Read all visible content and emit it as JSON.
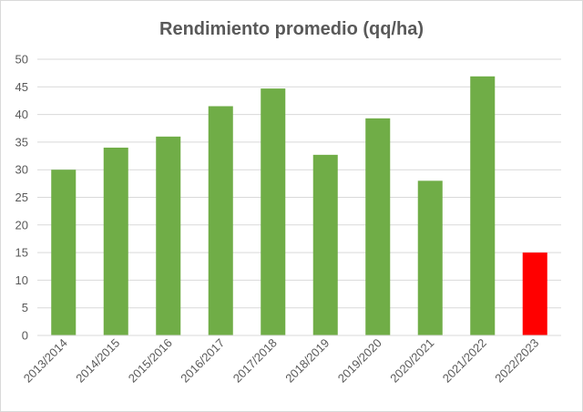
{
  "chart_data": {
    "type": "bar",
    "title": "Rendimiento promedio (qq/ha)",
    "xlabel": "",
    "ylabel": "",
    "categories": [
      "2013/2014",
      "2014/2015",
      "2015/2016",
      "2016/2017",
      "2017/2018",
      "2018/2019",
      "2019/2020",
      "2020/2021",
      "2021/2022",
      "2022/2023"
    ],
    "values": [
      30,
      34,
      36,
      41.5,
      44.7,
      32.7,
      39.3,
      28,
      46.9,
      15
    ],
    "bar_colors": [
      "#70ad47",
      "#70ad47",
      "#70ad47",
      "#70ad47",
      "#70ad47",
      "#70ad47",
      "#70ad47",
      "#70ad47",
      "#70ad47",
      "#ff0000"
    ],
    "ylim": [
      0,
      50
    ],
    "yticks": [
      0,
      5,
      10,
      15,
      20,
      25,
      30,
      35,
      40,
      45,
      50
    ],
    "grid": true,
    "legend": "none"
  }
}
